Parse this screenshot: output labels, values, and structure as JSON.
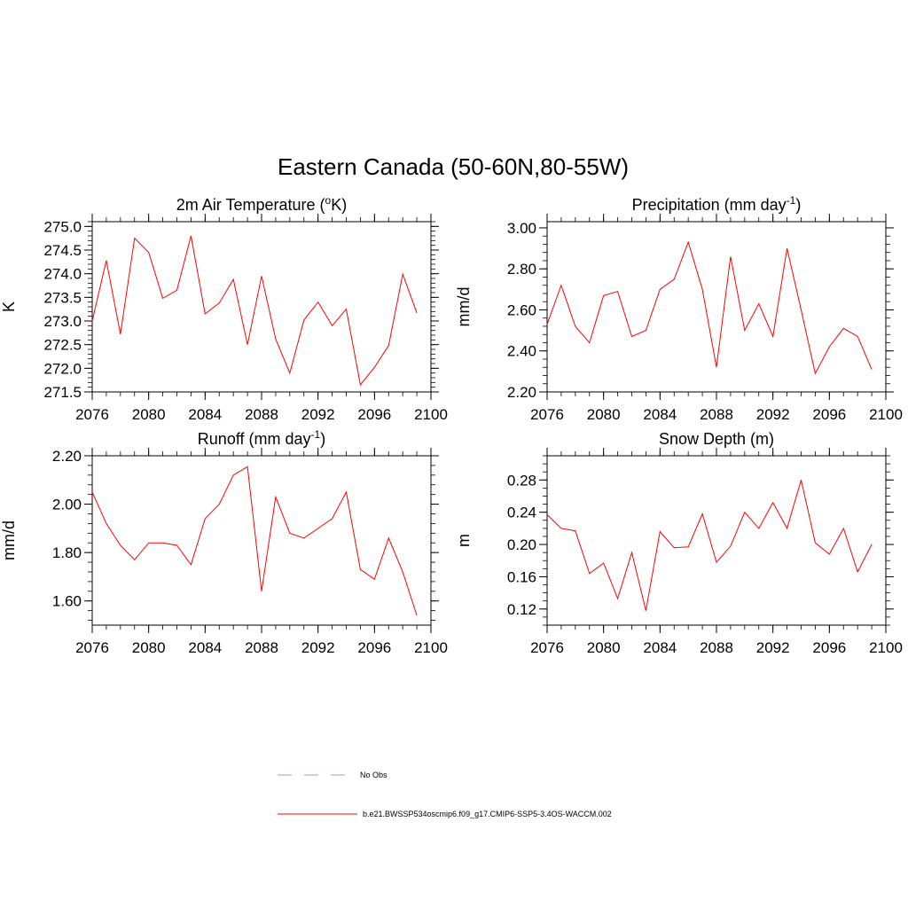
{
  "figure": {
    "title": "Eastern Canada (50-60N,80-55W)"
  },
  "chart_data": [
    {
      "type": "line",
      "title": "2m Air Temperature (",
      "title_sup": "o",
      "title_tail": "K)",
      "ylabel": "K",
      "xlim": [
        2076,
        2100
      ],
      "ylim": [
        271.5,
        275.1
      ],
      "yticks": [
        271.5,
        272.0,
        272.5,
        273.0,
        273.5,
        274.0,
        274.5,
        275.0
      ],
      "yticklabels": [
        "271.5",
        "272.0",
        "272.5",
        "273.0",
        "273.5",
        "274.0",
        "274.5",
        "275.0"
      ],
      "yminor": 0.1,
      "xticks": [
        2076,
        2080,
        2084,
        2088,
        2092,
        2096,
        2100
      ],
      "xticklabels": [
        "2076",
        "2080",
        "2084",
        "2088",
        "2092",
        "2096",
        "2100"
      ],
      "x": [
        2076,
        2077,
        2078,
        2079,
        2080,
        2081,
        2082,
        2083,
        2084,
        2085,
        2086,
        2087,
        2088,
        2089,
        2090,
        2091,
        2092,
        2093,
        2094,
        2095,
        2096,
        2097,
        2098,
        2099
      ],
      "series": [
        {
          "name": "b.e21.BWSSP534oscmip6.f09_g17.CMIP6-SSP5-3.4OS-WACCM.002",
          "color": "#ff0000",
          "values": [
            273.0,
            274.28,
            272.72,
            274.75,
            274.45,
            273.48,
            273.65,
            274.8,
            273.15,
            273.38,
            273.88,
            272.5,
            273.95,
            272.62,
            271.9,
            273.02,
            273.4,
            272.9,
            273.25,
            271.65,
            272.02,
            272.48,
            273.99,
            273.17
          ]
        }
      ]
    },
    {
      "type": "line",
      "title": "Precipitation (mm day",
      "title_sup": "-1",
      "title_tail": ")",
      "ylabel": "mm/d",
      "xlim": [
        2076,
        2100
      ],
      "ylim": [
        2.2,
        3.03
      ],
      "yticks": [
        2.2,
        2.4,
        2.6,
        2.8,
        3.0
      ],
      "yticklabels": [
        "2.20",
        "2.40",
        "2.60",
        "2.80",
        "3.00"
      ],
      "yminor": 0.04,
      "xticks": [
        2076,
        2080,
        2084,
        2088,
        2092,
        2096,
        2100
      ],
      "xticklabels": [
        "2076",
        "2080",
        "2084",
        "2088",
        "2092",
        "2096",
        "2100"
      ],
      "x": [
        2076,
        2077,
        2078,
        2079,
        2080,
        2081,
        2082,
        2083,
        2084,
        2085,
        2086,
        2087,
        2088,
        2089,
        2090,
        2091,
        2092,
        2093,
        2094,
        2095,
        2096,
        2097,
        2098,
        2099
      ],
      "series": [
        {
          "name": "b.e21.BWSSP534oscmip6.f09_g17.CMIP6-SSP5-3.4OS-WACCM.002",
          "color": "#ff0000",
          "values": [
            2.53,
            2.72,
            2.52,
            2.44,
            2.67,
            2.69,
            2.47,
            2.5,
            2.7,
            2.75,
            2.93,
            2.7,
            2.32,
            2.86,
            2.5,
            2.63,
            2.47,
            2.9,
            2.6,
            2.29,
            2.42,
            2.51,
            2.47,
            2.31
          ]
        }
      ]
    },
    {
      "type": "line",
      "title": "Runoff (mm day",
      "title_sup": "-1",
      "title_tail": ")",
      "ylabel": "mm/d",
      "xlim": [
        2076,
        2100
      ],
      "ylim": [
        1.5,
        2.2
      ],
      "yticks": [
        1.6,
        1.8,
        2.0,
        2.2
      ],
      "yticklabels": [
        "1.60",
        "1.80",
        "2.00",
        "2.20"
      ],
      "yminor": 0.04,
      "xticks": [
        2076,
        2080,
        2084,
        2088,
        2092,
        2096,
        2100
      ],
      "xticklabels": [
        "2076",
        "2080",
        "2084",
        "2088",
        "2092",
        "2096",
        "2100"
      ],
      "x": [
        2076,
        2077,
        2078,
        2079,
        2080,
        2081,
        2082,
        2083,
        2084,
        2085,
        2086,
        2087,
        2088,
        2089,
        2090,
        2091,
        2092,
        2093,
        2094,
        2095,
        2096,
        2097,
        2098,
        2099
      ],
      "series": [
        {
          "name": "b.e21.BWSSP534oscmip6.f09_g17.CMIP6-SSP5-3.4OS-WACCM.002",
          "color": "#ff0000",
          "values": [
            2.05,
            1.92,
            1.83,
            1.77,
            1.84,
            1.84,
            1.83,
            1.75,
            1.94,
            2.0,
            2.12,
            2.155,
            1.64,
            2.03,
            1.88,
            1.86,
            1.9,
            1.94,
            2.05,
            1.73,
            1.69,
            1.86,
            1.72,
            1.54
          ]
        }
      ]
    },
    {
      "type": "line",
      "title": "Snow Depth (m)",
      "title_sup": "",
      "title_tail": "",
      "ylabel": "m",
      "xlim": [
        2076,
        2100
      ],
      "ylim": [
        0.1,
        0.31
      ],
      "yticks": [
        0.12,
        0.16,
        0.2,
        0.24,
        0.28
      ],
      "yticklabels": [
        "0.12",
        "0.16",
        "0.20",
        "0.24",
        "0.28"
      ],
      "yminor": 0.01,
      "xticks": [
        2076,
        2080,
        2084,
        2088,
        2092,
        2096,
        2100
      ],
      "xticklabels": [
        "2076",
        "2080",
        "2084",
        "2088",
        "2092",
        "2096",
        "2100"
      ],
      "x": [
        2076,
        2077,
        2078,
        2079,
        2080,
        2081,
        2082,
        2083,
        2084,
        2085,
        2086,
        2087,
        2088,
        2089,
        2090,
        2091,
        2092,
        2093,
        2094,
        2095,
        2096,
        2097,
        2098,
        2099
      ],
      "series": [
        {
          "name": "b.e21.BWSSP534oscmip6.f09_g17.CMIP6-SSP5-3.4OS-WACCM.002",
          "color": "#ff0000",
          "values": [
            0.237,
            0.22,
            0.217,
            0.164,
            0.177,
            0.133,
            0.19,
            0.118,
            0.216,
            0.196,
            0.197,
            0.238,
            0.178,
            0.198,
            0.24,
            0.22,
            0.252,
            0.22,
            0.28,
            0.202,
            0.188,
            0.22,
            0.166,
            0.2
          ]
        }
      ]
    }
  ],
  "legend": {
    "entries": [
      {
        "label": "No Obs",
        "style": "dashed",
        "color": "#9999dd"
      },
      {
        "label": "b.e21.BWSSP534oscmip6.f09_g17.CMIP6-SSP5-3.4OS-WACCM.002",
        "style": "solid",
        "color": "#ff0000"
      }
    ]
  }
}
